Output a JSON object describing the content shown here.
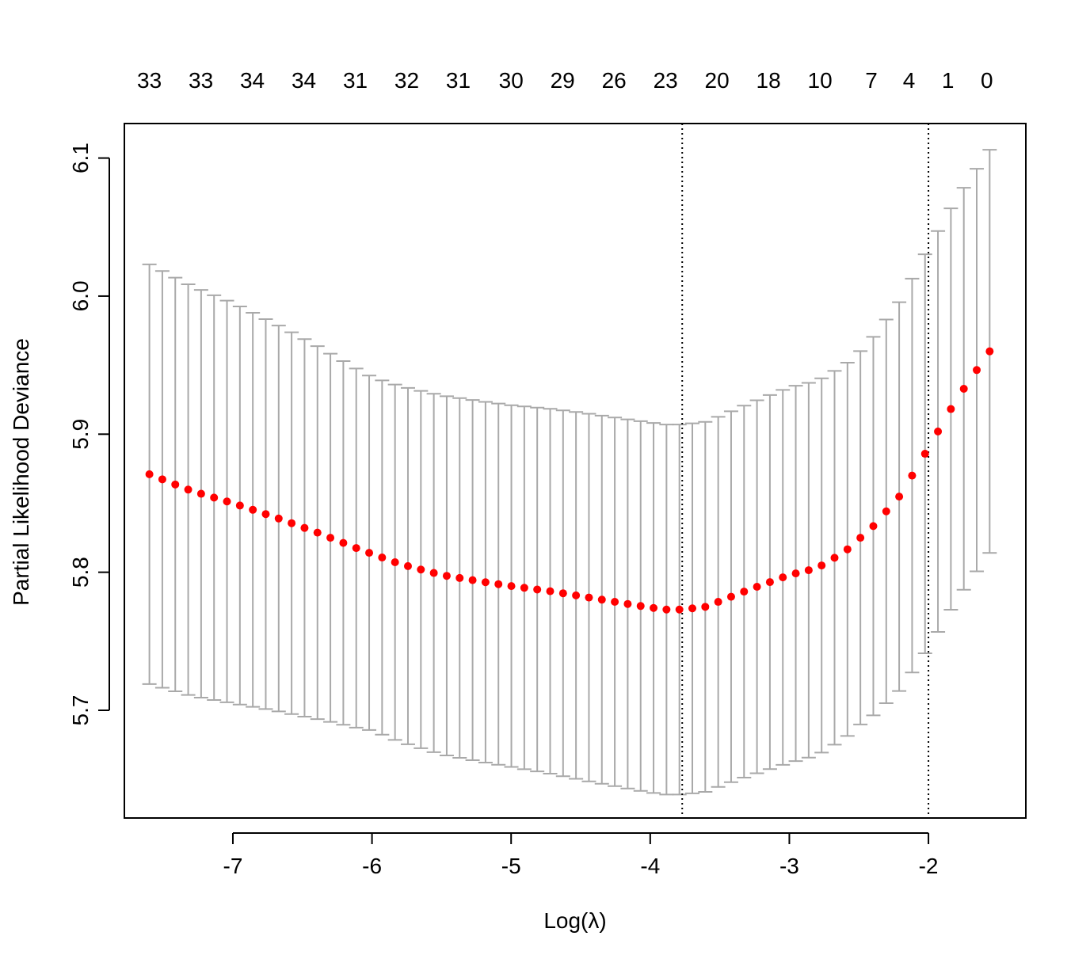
{
  "chart_data": {
    "type": "scatter",
    "subtype": "cv-lasso-errorbar",
    "xlabel": "Log(λ)",
    "ylabel": "Partial Likelihood Deviance",
    "xlim": [
      -7.78,
      -1.3
    ],
    "ylim": [
      5.622,
      6.125
    ],
    "x_ticks": [
      -7,
      -6,
      -5,
      -4,
      -3,
      -2
    ],
    "x_tick_labels": [
      "-7",
      "-6",
      "-5",
      "-4",
      "-3",
      "-2"
    ],
    "y_ticks": [
      5.7,
      5.8,
      5.9,
      6.0,
      6.1
    ],
    "y_tick_labels": [
      "5.7",
      "5.8",
      "5.9",
      "6.0",
      "6.1"
    ],
    "top_axis": {
      "positions": [
        -7.6,
        -7.23,
        -6.86,
        -6.49,
        -6.12,
        -5.75,
        -5.38,
        -5.0,
        -4.63,
        -4.26,
        -3.89,
        -3.52,
        -3.15,
        -2.78,
        -2.41,
        -2.14,
        -1.86,
        -1.58
      ],
      "labels": [
        "33",
        "33",
        "34",
        "34",
        "31",
        "32",
        "31",
        "30",
        "29",
        "26",
        "23",
        "20",
        "18",
        "10",
        "7",
        "4",
        "1",
        "0"
      ]
    },
    "vlines": [
      {
        "x": -3.77,
        "style": "dotted"
      },
      {
        "x": -2.0,
        "style": "dotted"
      }
    ],
    "x_range": [
      -7.6,
      -1.56
    ],
    "n_points": 66,
    "mean_anchors": [
      [
        -7.6,
        5.871
      ],
      [
        -7.3,
        5.859
      ],
      [
        -7.0,
        5.85
      ],
      [
        -6.7,
        5.84
      ],
      [
        -6.4,
        5.829
      ],
      [
        -6.1,
        5.817
      ],
      [
        -5.8,
        5.806
      ],
      [
        -5.5,
        5.798
      ],
      [
        -5.2,
        5.793
      ],
      [
        -5.0,
        5.79
      ],
      [
        -4.7,
        5.786
      ],
      [
        -4.4,
        5.781
      ],
      [
        -4.1,
        5.776
      ],
      [
        -3.9,
        5.773
      ],
      [
        -3.77,
        5.773
      ],
      [
        -3.6,
        5.775
      ],
      [
        -3.3,
        5.787
      ],
      [
        -3.0,
        5.798
      ],
      [
        -2.8,
        5.803
      ],
      [
        -2.6,
        5.815
      ],
      [
        -2.4,
        5.833
      ],
      [
        -2.2,
        5.856
      ],
      [
        -2.0,
        5.89
      ],
      [
        -1.8,
        5.925
      ],
      [
        -1.56,
        5.96
      ]
    ],
    "halfwidth_anchors": [
      [
        -7.6,
        0.152
      ],
      [
        -7.0,
        0.145
      ],
      [
        -6.5,
        0.137
      ],
      [
        -6.0,
        0.128
      ],
      [
        -5.5,
        0.13
      ],
      [
        -5.0,
        0.131
      ],
      [
        -4.5,
        0.133
      ],
      [
        -4.0,
        0.134
      ],
      [
        -3.77,
        0.134
      ],
      [
        -3.5,
        0.134
      ],
      [
        -3.0,
        0.136
      ],
      [
        -2.5,
        0.135
      ],
      [
        -2.0,
        0.145
      ],
      [
        -1.56,
        0.146
      ]
    ],
    "colors": {
      "points": "#ff0000",
      "errorbars": "#a9a9a9",
      "vlines": "#000000",
      "frame": "#000000"
    },
    "grid": false,
    "legend": "none"
  }
}
